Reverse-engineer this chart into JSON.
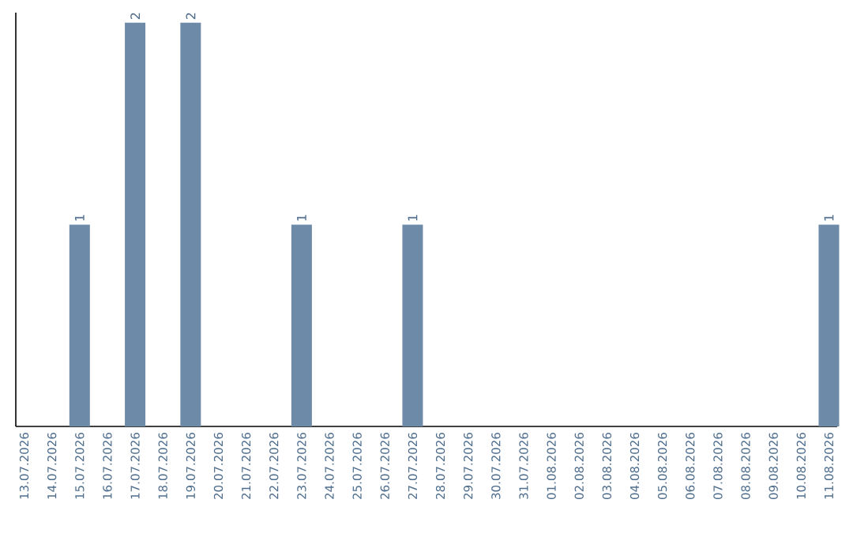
{
  "chart_data": {
    "type": "bar",
    "categories": [
      "13.07.2026",
      "14.07.2026",
      "15.07.2026",
      "16.07.2026",
      "17.07.2026",
      "18.07.2026",
      "19.07.2026",
      "20.07.2026",
      "21.07.2026",
      "22.07.2026",
      "23.07.2026",
      "24.07.2026",
      "25.07.2026",
      "26.07.2026",
      "27.07.2026",
      "28.07.2026",
      "29.07.2026",
      "30.07.2026",
      "31.07.2026",
      "01.08.2026",
      "02.08.2026",
      "03.08.2026",
      "04.08.2026",
      "05.08.2026",
      "06.08.2026",
      "07.08.2026",
      "08.08.2026",
      "09.08.2026",
      "10.08.2026",
      "11.08.2026"
    ],
    "values": [
      0,
      0,
      1,
      0,
      2,
      0,
      2,
      0,
      0,
      0,
      1,
      0,
      0,
      0,
      1,
      0,
      0,
      0,
      0,
      0,
      0,
      0,
      0,
      0,
      0,
      0,
      0,
      0,
      0,
      1
    ],
    "value_labels": [
      null,
      null,
      "1",
      null,
      "2",
      null,
      "2",
      null,
      null,
      null,
      "1",
      null,
      null,
      null,
      "1",
      null,
      null,
      null,
      null,
      null,
      null,
      null,
      null,
      null,
      null,
      null,
      null,
      null,
      null,
      "1"
    ],
    "color": "#6d8aa8",
    "ylim": [
      0,
      2.05
    ],
    "tick_labels": "x",
    "grid": false
  }
}
